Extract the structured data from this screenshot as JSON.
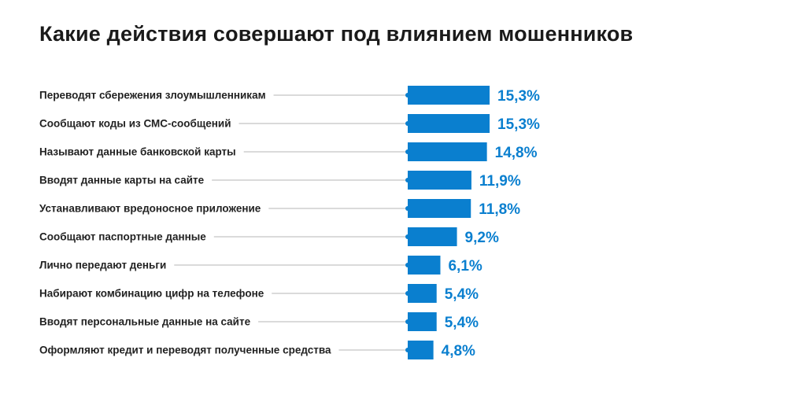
{
  "chart_data": {
    "type": "bar",
    "orientation": "horizontal",
    "title": "Какие действия совершают под влиянием мошенников",
    "categories": [
      "Переводят сбережения злоумышленникам",
      "Сообщают коды из СМС-сообщений",
      "Называют данные банковской карты",
      "Вводят данные карты на сайте",
      "Устанавливают вредоносное приложение",
      "Сообщают паспортные данные",
      "Лично передают деньги",
      "Набирают комбинацию цифр на телефоне",
      "Вводят персональные данные на сайте",
      "Оформляют кредит и переводят полученные средства"
    ],
    "values": [
      15.3,
      15.3,
      14.8,
      11.9,
      11.8,
      9.2,
      6.1,
      5.4,
      5.4,
      4.8
    ],
    "data_labels": [
      "15,3%",
      "15,3%",
      "14,8%",
      "11,9%",
      "11,8%",
      "9,2%",
      "6,1%",
      "5,4%",
      "5,4%",
      "4,8%"
    ],
    "unit": "%",
    "grid": false,
    "legend": "none",
    "colors": {
      "bar": "#0a7fcf",
      "value_label": "#0a7fcf",
      "leader_line": "#b5b5b5"
    }
  }
}
